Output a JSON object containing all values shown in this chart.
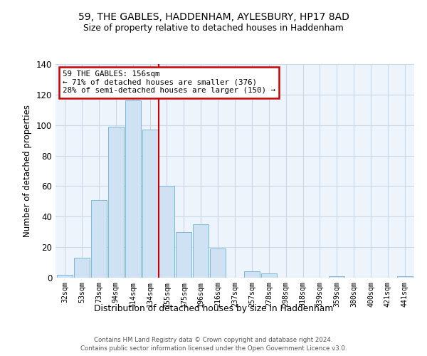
{
  "title1": "59, THE GABLES, HADDENHAM, AYLESBURY, HP17 8AD",
  "title2": "Size of property relative to detached houses in Haddenham",
  "xlabel": "Distribution of detached houses by size in Haddenham",
  "ylabel": "Number of detached properties",
  "bar_labels": [
    "32sqm",
    "53sqm",
    "73sqm",
    "94sqm",
    "114sqm",
    "134sqm",
    "155sqm",
    "175sqm",
    "196sqm",
    "216sqm",
    "237sqm",
    "257sqm",
    "278sqm",
    "298sqm",
    "318sqm",
    "339sqm",
    "359sqm",
    "380sqm",
    "400sqm",
    "421sqm",
    "441sqm"
  ],
  "bar_values": [
    2,
    13,
    51,
    99,
    116,
    97,
    60,
    30,
    35,
    19,
    0,
    4,
    3,
    0,
    0,
    0,
    1,
    0,
    0,
    0,
    1
  ],
  "bar_color": "#cfe2f3",
  "bar_edge_color": "#7ab8d9",
  "marker_color": "#cc0000",
  "annotation_box_edge": "#cc0000",
  "annotation_line1": "59 THE GABLES: 156sqm",
  "annotation_line2": "← 71% of detached houses are smaller (376)",
  "annotation_line3": "28% of semi-detached houses are larger (150) →",
  "ylim": [
    0,
    140
  ],
  "yticks": [
    0,
    20,
    40,
    60,
    80,
    100,
    120,
    140
  ],
  "footer1": "Contains HM Land Registry data © Crown copyright and database right 2024.",
  "footer2": "Contains public sector information licensed under the Open Government Licence v3.0.",
  "bg_color": "#ffffff",
  "plot_bg_color": "#eef4fb",
  "grid_color": "#c8d8e8"
}
